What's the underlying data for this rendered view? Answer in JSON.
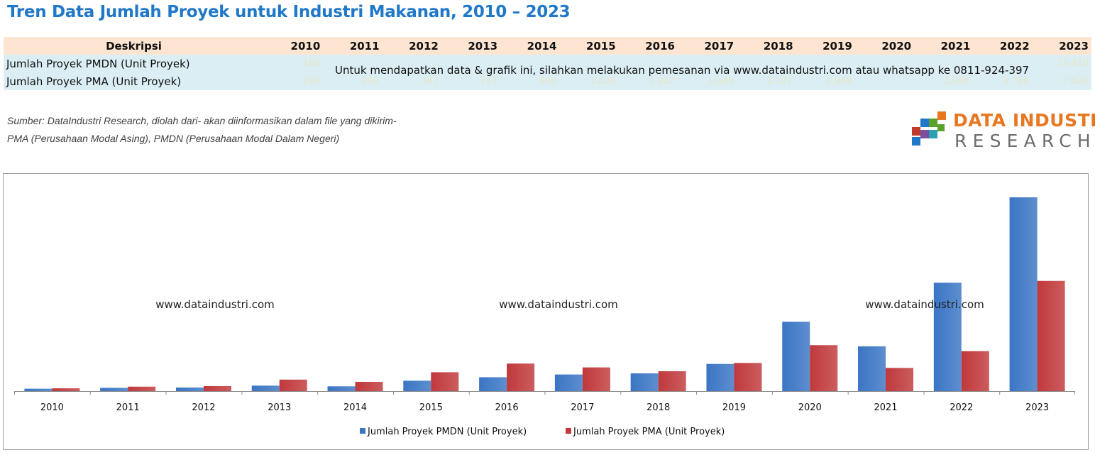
{
  "title": "Tren Data Jumlah Proyek untuk Industri Makanan, 2010 – 2023",
  "table": {
    "header_desc": "Deskripsi",
    "years": [
      "2010",
      "2011",
      "2012",
      "2013",
      "2014",
      "2015",
      "2016",
      "2017",
      "2018",
      "2019",
      "2020",
      "2021",
      "2022",
      "2023"
    ],
    "rows": [
      {
        "label": "Jumlah Proyek PMDN (Unit Proyek)",
        "values": [
          "166",
          "",
          "",
          "",
          "",
          "",
          "",
          "",
          "",
          "",
          "",
          "",
          "",
          "13.410"
        ]
      },
      {
        "label": "Jumlah Proyek PMA (Unit Proyek)",
        "values": [
          "194",
          "308",
          "347",
          "797",
          "640",
          "1.306",
          "1.907",
          "1.640",
          "1.377",
          "1.948",
          "",
          "1.606",
          "2.766",
          "7.624"
        ]
      }
    ]
  },
  "notice": "Untuk mendapatkan data & grafik ini, silahkan melakukan pemesanan via www.dataindustri.com atau whatsapp ke 0811-924-397",
  "source_line1": "Sumber: DataIndustri Research, diolah dari- akan diinformasikan dalam file yang dikirim-",
  "source_line2": "PMA (Perusahaan Modal Asing), PMDN (Perusahaan Modal Dalam Negeri)",
  "logo": {
    "line1": "DATA INDUSTRI",
    "line2": "RESEARCH",
    "colors": [
      "#e87722",
      "#1f78c8",
      "#5aa02c",
      "#c0392b",
      "#7b4fa0",
      "#2aa0b0"
    ]
  },
  "watermarks": [
    "www.dataindustri.com",
    "www.dataindustri.com",
    "www.dataindustri.com"
  ],
  "chart_data": {
    "type": "bar",
    "categories": [
      "2010",
      "2011",
      "2012",
      "2013",
      "2014",
      "2015",
      "2016",
      "2017",
      "2018",
      "2019",
      "2020",
      "2021",
      "2022",
      "2023"
    ],
    "series": [
      {
        "name": "Jumlah Proyek PMDN (Unit Proyek)",
        "color": "#3a75c4",
        "values": [
          166,
          230,
          250,
          380,
          330,
          720,
          960,
          1150,
          1230,
          1880,
          4800,
          3100,
          7500,
          13410
        ]
      },
      {
        "name": "Jumlah Proyek PMA (Unit Proyek)",
        "color": "#c0393b",
        "values": [
          194,
          308,
          347,
          797,
          640,
          1306,
          1907,
          1640,
          1377,
          1948,
          3180,
          1606,
          2766,
          7624
        ]
      }
    ],
    "ylim": [
      0,
      13800
    ],
    "grid": false,
    "legend": "bottom"
  }
}
